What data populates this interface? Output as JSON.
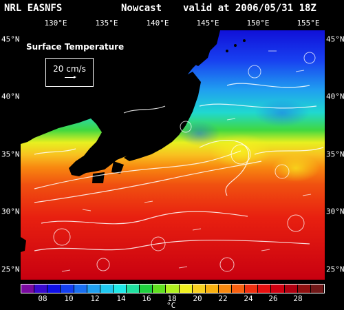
{
  "header": {
    "source": "NRL EASNFS",
    "product": "Nowcast",
    "valid": "valid at 2006/05/31 18Z"
  },
  "longitude_labels": [
    "130°E",
    "135°E",
    "140°E",
    "145°E",
    "150°E",
    "155°E"
  ],
  "latitude_labels": [
    "45°N",
    "40°N",
    "35°N",
    "30°N",
    "25°N"
  ],
  "inset": {
    "title": "Surface Temperature",
    "scale_label": "20 cm/s"
  },
  "colorbar": {
    "unit": "°C",
    "tick_labels": [
      "08",
      "10",
      "12",
      "14",
      "16",
      "18",
      "20",
      "22",
      "24",
      "26",
      "28"
    ],
    "colors": [
      "#7a0aa0",
      "#3a0ad0",
      "#1010e8",
      "#1440f0",
      "#1a70f0",
      "#20a0f0",
      "#20c8f0",
      "#20e8e8",
      "#20e0a0",
      "#20d040",
      "#60e020",
      "#b0f020",
      "#f0f020",
      "#f8d020",
      "#f8b010",
      "#f88810",
      "#f86010",
      "#f03010",
      "#e81010",
      "#d00010",
      "#b00010",
      "#901010",
      "#701818"
    ]
  }
}
